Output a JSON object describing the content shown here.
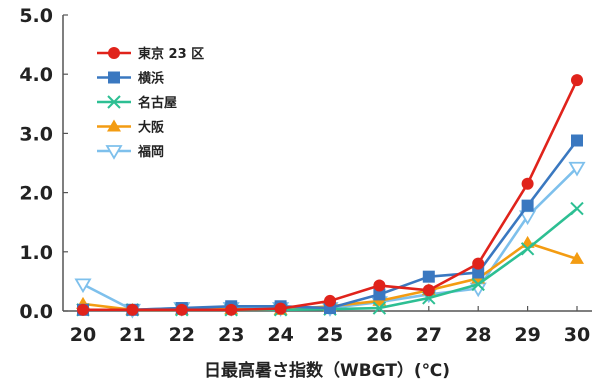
{
  "chart_data": {
    "type": "line",
    "xlabel": "日最高暑さ指数（WBGT）(℃)",
    "ylabel": "",
    "x": [
      20,
      21,
      22,
      23,
      24,
      25,
      26,
      27,
      28,
      29,
      30
    ],
    "ylim": [
      0,
      5
    ],
    "yticks": [
      "0.0",
      "1.0",
      "2.0",
      "3.0",
      "4.0",
      "5.0"
    ],
    "grid": false,
    "legend_position": "top-left",
    "series": [
      {
        "name": "東京 23 区",
        "color": "#e0231b",
        "marker": "circle",
        "values": [
          0.02,
          0.02,
          0.02,
          0.02,
          0.04,
          0.17,
          0.43,
          0.35,
          0.8,
          2.15,
          3.9
        ]
      },
      {
        "name": "横浜",
        "color": "#3a78c0",
        "marker": "square",
        "values": [
          0.02,
          0.02,
          0.05,
          0.08,
          0.08,
          0.05,
          0.28,
          0.58,
          0.65,
          1.78,
          2.88
        ]
      },
      {
        "name": "名古屋",
        "color": "#2dbf93",
        "marker": "x",
        "values": [
          0.02,
          0.02,
          0.02,
          0.02,
          0.02,
          0.03,
          0.05,
          0.22,
          0.45,
          1.05,
          1.73
        ]
      },
      {
        "name": "大阪",
        "color": "#f39c12",
        "marker": "triangle-up",
        "values": [
          0.12,
          0.02,
          0.02,
          0.03,
          0.02,
          0.08,
          0.17,
          0.35,
          0.55,
          1.15,
          0.88
        ]
      },
      {
        "name": "福岡",
        "color": "#7ec0ec",
        "marker": "triangle-down",
        "values": [
          0.45,
          0.02,
          0.05,
          0.05,
          0.05,
          0.05,
          0.15,
          0.28,
          0.38,
          1.6,
          2.42
        ]
      }
    ]
  }
}
